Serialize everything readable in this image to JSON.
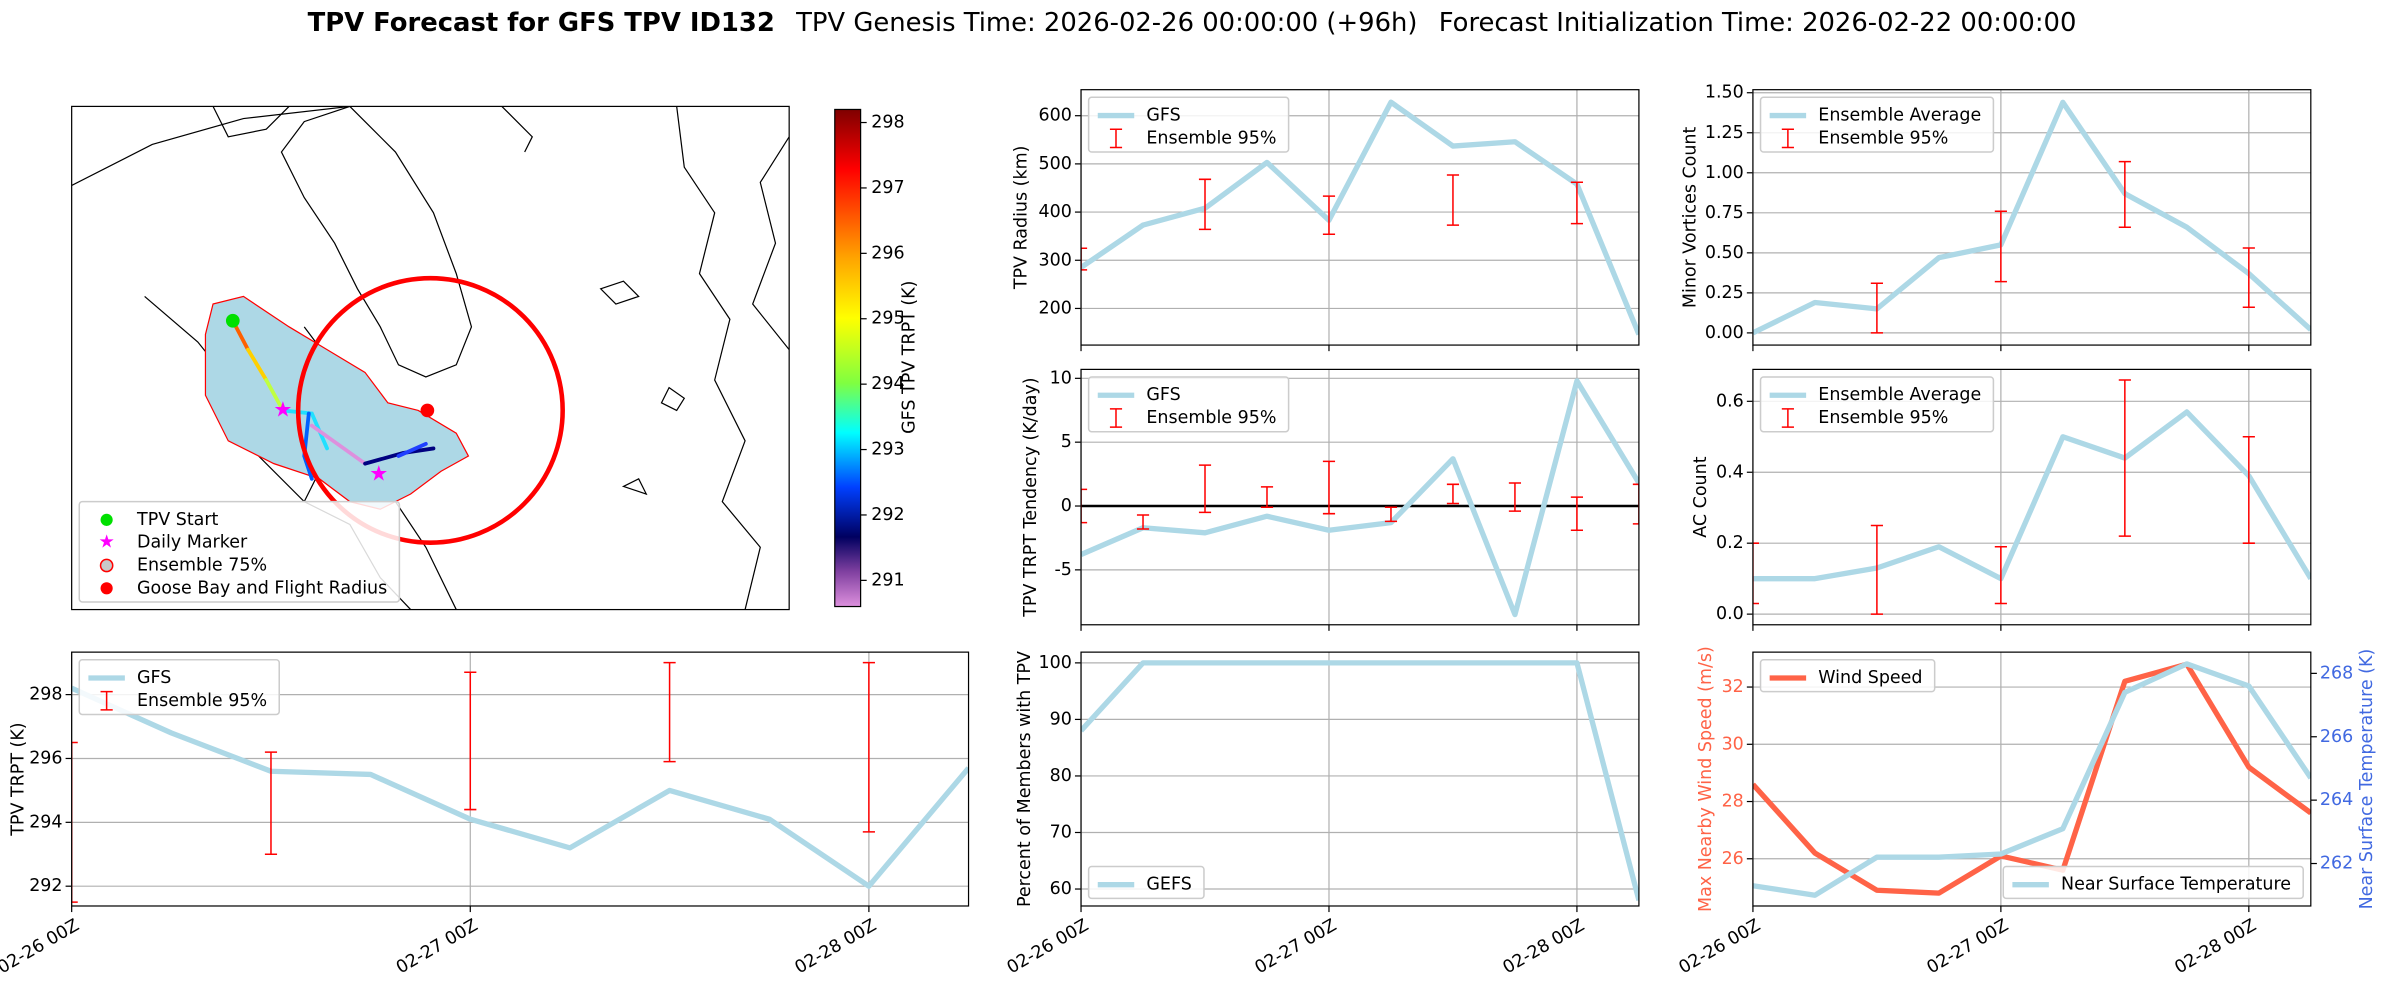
{
  "title": [
    "TPV Forecast for GFS TPV ID132",
    "TPV Genesis Time: 2026-02-26 00:00:00 (+96h)",
    "Forecast Initialization Time: 2026-02-22 00:00:00"
  ],
  "chart_data": [
    {
      "type": "map",
      "colorbar_label": "GFS TPV TRPT (K)",
      "clim": [
        290.6,
        298.2
      ],
      "cticks": [
        291,
        292,
        293,
        294,
        295,
        296,
        297,
        298
      ],
      "legend_corner": "lower left",
      "legend": [
        {
          "label": "TPV Start",
          "color": "#00e000"
        },
        {
          "label": "Daily Marker",
          "color": "#ff00ff"
        },
        {
          "label": "Ensemble 75%",
          "color": "#add8e6"
        },
        {
          "label": "Goose Bay and Flight Radius",
          "color": "#ff0000"
        }
      ]
    },
    {
      "type": "line",
      "ylabel": "TPV TRPT (K)",
      "x": [
        "02-26 00Z",
        "02-26 06Z",
        "02-26 12Z",
        "02-26 18Z",
        "02-27 00Z",
        "02-27 06Z",
        "02-27 12Z",
        "02-27 18Z",
        "02-28 00Z",
        "02-28 06Z"
      ],
      "xticks": [
        "02-26 00Z",
        "02-27 00Z",
        "02-28 00Z"
      ],
      "xticklabels": true,
      "ylim": [
        291.38,
        299.33
      ],
      "yticks": [
        292,
        294,
        296,
        298
      ],
      "grid": true,
      "legend": "upper left",
      "series": [
        {
          "name": "GFS",
          "color": "#add8e6",
          "values": [
            298.2,
            296.8,
            295.6,
            295.5,
            294.1,
            293.2,
            295.0,
            294.1,
            292.0,
            295.7
          ]
        }
      ],
      "errorbar": {
        "name": "Ensemble 95%",
        "color": "#ff0000",
        "low": [
          291.5,
          null,
          293.0,
          null,
          294.4,
          null,
          295.9,
          null,
          293.7,
          null
        ],
        "high": [
          296.5,
          null,
          296.2,
          null,
          298.7,
          null,
          299.0,
          null,
          299.0,
          null
        ]
      }
    },
    {
      "type": "line",
      "ylabel": "TPV Radius (km)",
      "x": [
        "02-26 00Z",
        "02-26 06Z",
        "02-26 12Z",
        "02-26 18Z",
        "02-27 00Z",
        "02-27 06Z",
        "02-27 12Z",
        "02-27 18Z",
        "02-28 00Z",
        "02-28 06Z"
      ],
      "xticks": [
        "02-26 00Z",
        "02-27 00Z",
        "02-28 00Z"
      ],
      "xticklabels": false,
      "ylim": [
        124,
        654
      ],
      "yticks": [
        200,
        300,
        400,
        500,
        600
      ],
      "grid": true,
      "legend": "upper left",
      "series": [
        {
          "name": "GFS",
          "color": "#add8e6",
          "values": [
            285,
            373,
            408,
            503,
            383,
            628,
            537,
            546,
            458,
            146
          ]
        }
      ],
      "errorbar": {
        "name": "Ensemble 95%",
        "color": "#ff0000",
        "low": [
          280,
          null,
          364,
          null,
          354,
          null,
          373,
          null,
          376,
          null
        ],
        "high": [
          325,
          null,
          468,
          null,
          433,
          null,
          477,
          null,
          462,
          null
        ]
      }
    },
    {
      "type": "line",
      "ylabel": "TPV TRPT Tendency (K/day)",
      "x": [
        "02-26 00Z",
        "02-26 06Z",
        "02-26 12Z",
        "02-26 18Z",
        "02-27 00Z",
        "02-27 06Z",
        "02-27 12Z",
        "02-27 18Z",
        "02-28 00Z",
        "02-28 06Z"
      ],
      "xticks": [
        "02-26 00Z",
        "02-27 00Z",
        "02-28 00Z"
      ],
      "xticklabels": false,
      "ylim": [
        -9.3,
        10.7
      ],
      "yticks": [
        -5,
        0,
        5,
        10
      ],
      "grid": true,
      "legend": "upper left",
      "zero_line": true,
      "series": [
        {
          "name": "GFS",
          "color": "#add8e6",
          "values": [
            -3.8,
            -1.7,
            -2.1,
            -0.8,
            -1.9,
            -1.3,
            3.7,
            -8.5,
            9.8,
            1.8
          ]
        }
      ],
      "errorbar": {
        "name": "Ensemble 95%",
        "color": "#ff0000",
        "low": [
          -1.3,
          -1.8,
          -0.5,
          -0.1,
          -0.6,
          -1.2,
          0.2,
          -0.4,
          -1.9,
          -1.4
        ],
        "high": [
          1.3,
          -0.7,
          3.2,
          1.5,
          3.5,
          -0.1,
          1.7,
          1.8,
          0.7,
          1.7
        ]
      }
    },
    {
      "type": "line",
      "ylabel": "Percent of Members with TPV",
      "x": [
        "02-26 00Z",
        "02-26 06Z",
        "02-26 12Z",
        "02-26 18Z",
        "02-27 00Z",
        "02-27 06Z",
        "02-27 12Z",
        "02-27 18Z",
        "02-28 00Z",
        "02-28 06Z"
      ],
      "xticks": [
        "02-26 00Z",
        "02-27 00Z",
        "02-28 00Z"
      ],
      "xticklabels": true,
      "ylim": [
        57.0,
        101.9
      ],
      "yticks": [
        60,
        70,
        80,
        90,
        100
      ],
      "grid": true,
      "legend": "lower left",
      "series": [
        {
          "name": "GEFS",
          "color": "#add8e6",
          "values": [
            88,
            100,
            100,
            100,
            100,
            100,
            100,
            100,
            100,
            58
          ]
        }
      ]
    },
    {
      "type": "line",
      "ylabel": "Minor Vortices Count",
      "x": [
        "02-26 00Z",
        "02-26 06Z",
        "02-26 12Z",
        "02-26 18Z",
        "02-27 00Z",
        "02-27 06Z",
        "02-27 12Z",
        "02-27 18Z",
        "02-28 00Z",
        "02-28 06Z"
      ],
      "xticks": [
        "02-26 00Z",
        "02-27 00Z",
        "02-28 00Z"
      ],
      "xticklabels": false,
      "ylim": [
        -0.076,
        1.519
      ],
      "yticks": [
        {
          "value": 0,
          "label": "0.00"
        },
        0.25,
        {
          "value": 0.5,
          "label": "0.50"
        },
        0.75,
        {
          "value": 1,
          "label": "1.00"
        },
        1.25,
        {
          "value": 1.5,
          "label": "1.50"
        }
      ],
      "grid": true,
      "legend": "upper left",
      "series": [
        {
          "name": "Ensemble Average",
          "color": "#add8e6",
          "values": [
            0.0,
            0.19,
            0.15,
            0.47,
            0.55,
            1.44,
            0.87,
            0.66,
            0.37,
            0.02
          ]
        }
      ],
      "errorbar": {
        "name": "Ensemble 95%",
        "color": "#ff0000",
        "low": [
          null,
          null,
          0.0,
          null,
          0.32,
          null,
          0.66,
          null,
          0.16,
          null
        ],
        "high": [
          null,
          null,
          0.31,
          null,
          0.76,
          null,
          1.07,
          null,
          0.53,
          null
        ]
      }
    },
    {
      "type": "line",
      "ylabel": "AC Count",
      "x": [
        "02-26 00Z",
        "02-26 06Z",
        "02-26 12Z",
        "02-26 18Z",
        "02-27 00Z",
        "02-27 06Z",
        "02-27 12Z",
        "02-27 18Z",
        "02-28 00Z",
        "02-28 06Z"
      ],
      "xticks": [
        "02-26 00Z",
        "02-27 00Z",
        "02-28 00Z"
      ],
      "xticklabels": false,
      "ylim": [
        -0.03,
        0.69
      ],
      "yticks": [
        {
          "value": 0,
          "label": "0.0"
        },
        0.2,
        0.4,
        0.6
      ],
      "grid": true,
      "legend": "upper left",
      "series": [
        {
          "name": "Ensemble Average",
          "color": "#add8e6",
          "values": [
            0.1,
            0.1,
            0.13,
            0.19,
            0.1,
            0.5,
            0.44,
            0.57,
            0.39,
            0.1
          ]
        }
      ],
      "errorbar": {
        "name": "Ensemble 95%",
        "color": "#ff0000",
        "low": [
          0.03,
          null,
          0.0,
          null,
          0.03,
          null,
          0.22,
          null,
          0.2,
          null
        ],
        "high": [
          0.2,
          null,
          0.25,
          null,
          0.19,
          null,
          0.66,
          null,
          0.5,
          null
        ]
      }
    },
    {
      "type": "line",
      "ylabel": "Max Nearby Wind Speed (m/s)",
      "y2label": "Near Surface Temperature (K)",
      "y_color": "#ff6347",
      "y2_color": "#4169e1",
      "x": [
        "02-26 00Z",
        "02-26 06Z",
        "02-26 12Z",
        "02-26 18Z",
        "02-27 00Z",
        "02-27 06Z",
        "02-27 12Z",
        "02-27 18Z",
        "02-28 00Z",
        "02-28 06Z"
      ],
      "xticks": [
        "02-26 00Z",
        "02-27 00Z",
        "02-28 00Z"
      ],
      "xticklabels": true,
      "ylim": [
        24.35,
        33.22
      ],
      "yticks": [
        26,
        28,
        30,
        32
      ],
      "y2lim": [
        260.66,
        268.67
      ],
      "y2ticks": [
        262,
        264,
        266,
        268
      ],
      "grid": true,
      "legend": "upper left",
      "legend2": "lower right",
      "series": [
        {
          "name": "Wind Speed",
          "color": "#ff6347",
          "values": [
            28.6,
            26.2,
            24.9,
            24.8,
            26.1,
            25.6,
            32.2,
            32.8,
            29.2,
            27.6
          ]
        },
        {
          "name": "Near Surface Temperature",
          "color": "#add8e6",
          "axis": "y2",
          "values": [
            261.3,
            261.0,
            262.2,
            262.2,
            262.3,
            263.1,
            267.4,
            268.3,
            267.6,
            264.7
          ]
        }
      ]
    }
  ]
}
